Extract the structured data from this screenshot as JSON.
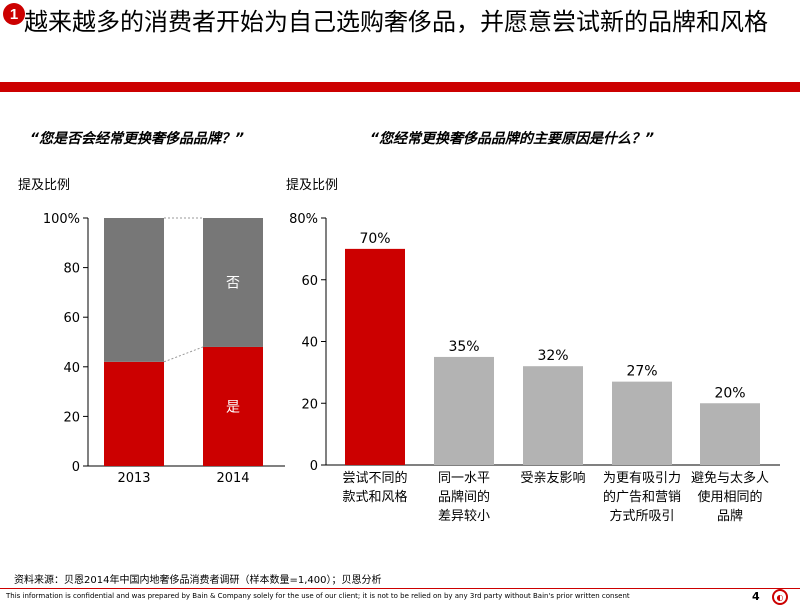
{
  "header": {
    "badge": "1",
    "title": "越来越多的消费者开始为自己选购奢侈品，并愿意尝试新的品牌和风格"
  },
  "left_panel": {
    "question": "“您是否会经常更换奢侈品品牌？”",
    "axis_title": "提及比例"
  },
  "right_panel": {
    "question": "“您经常更换奢侈品品牌的主要原因是什么？”",
    "axis_title": "提及比例"
  },
  "chart_data": [
    {
      "type": "bar",
      "stacked": true,
      "categories": [
        "2013",
        "2014"
      ],
      "series": [
        {
          "name": "是",
          "values": [
            42,
            48
          ],
          "color": "#cc0000"
        },
        {
          "name": "否",
          "values": [
            58,
            52
          ],
          "color": "#777777"
        }
      ],
      "ylim": [
        0,
        100
      ],
      "yticks": [
        "0",
        "20",
        "40",
        "60",
        "80",
        "100%"
      ],
      "ytick_values": [
        0,
        20,
        40,
        60,
        80,
        100
      ],
      "legend": "inside-bars"
    },
    {
      "type": "bar",
      "categories": [
        [
          "尝试不同的",
          "款式和风格"
        ],
        [
          "同一水平",
          "品牌间的",
          "差异较小"
        ],
        [
          "受亲友影响"
        ],
        [
          "为更有吸引力",
          "的广告和营销",
          "方式所吸引"
        ],
        [
          "避免与太多人",
          "使用相同的",
          "品牌"
        ]
      ],
      "values": [
        70,
        35,
        32,
        27,
        20
      ],
      "data_labels": [
        "70%",
        "35%",
        "32%",
        "27%",
        "20%"
      ],
      "colors": [
        "#cc0000",
        "#b3b3b3",
        "#b3b3b3",
        "#b3b3b3",
        "#b3b3b3"
      ],
      "ylim": [
        0,
        80
      ],
      "yticks": [
        "0",
        "20",
        "40",
        "60",
        "80%"
      ],
      "ytick_values": [
        0,
        20,
        40,
        60,
        80
      ]
    }
  ],
  "footer": {
    "source": "资料来源：贝恩2014年中国内地奢侈品消费者调研（样本数量=1,400）；贝恩分析",
    "disclaimer": "This information is confidential and was prepared by Bain & Company solely for the use of our client; it is not to be relied on by any 3rd party without Bain's prior written consent",
    "page_number": "4"
  },
  "colors": {
    "accent": "#cc0000",
    "gray_dark": "#777777",
    "gray_light": "#b3b3b3"
  }
}
